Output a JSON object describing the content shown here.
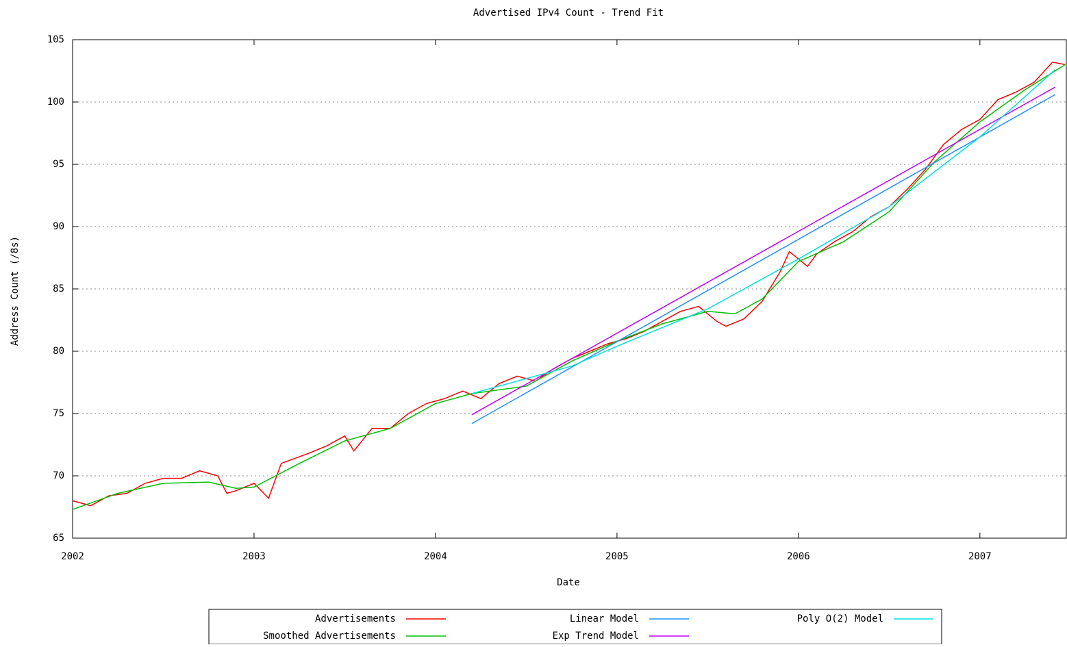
{
  "chart_data": {
    "type": "line",
    "title": "Advertised IPv4 Count - Trend Fit",
    "x_label": "Date",
    "y_label": "Address Count (/8s)",
    "xlim": [
      2002,
      2007.48
    ],
    "xticks": [
      2002,
      2003,
      2004,
      2005,
      2006,
      2007
    ],
    "ylim": [
      65,
      105
    ],
    "yticks": [
      65,
      70,
      75,
      80,
      85,
      90,
      95,
      100,
      105
    ],
    "grid": true,
    "legend": "bottom",
    "series": [
      {
        "name": "Advertisements",
        "color": "#ff0000",
        "x": [
          2002.0,
          2002.1,
          2002.2,
          2002.3,
          2002.4,
          2002.5,
          2002.6,
          2002.7,
          2002.8,
          2002.85,
          2002.9,
          2003.0,
          2003.08,
          2003.15,
          2003.3,
          2003.4,
          2003.5,
          2003.55,
          2003.65,
          2003.75,
          2003.85,
          2003.95,
          2004.05,
          2004.15,
          2004.25,
          2004.35,
          2004.45,
          2004.55,
          2004.65,
          2004.75,
          2004.85,
          2004.95,
          2005.05,
          2005.15,
          2005.25,
          2005.35,
          2005.45,
          2005.55,
          2005.6,
          2005.7,
          2005.8,
          2005.9,
          2005.95,
          2006.0,
          2006.05,
          2006.1,
          2006.2,
          2006.3,
          2006.4,
          2006.5,
          2006.6,
          2006.7,
          2006.8,
          2006.9,
          2007.0,
          2007.1,
          2007.2,
          2007.3,
          2007.4,
          2007.47
        ],
        "values": [
          68.0,
          67.6,
          68.4,
          68.6,
          69.4,
          69.8,
          69.8,
          70.4,
          70.0,
          68.6,
          68.8,
          69.4,
          68.2,
          71.0,
          71.8,
          72.4,
          73.2,
          72.0,
          73.8,
          73.8,
          75.0,
          75.8,
          76.2,
          76.8,
          76.2,
          77.4,
          78.0,
          77.6,
          78.6,
          79.4,
          80.0,
          80.6,
          81.0,
          81.6,
          82.4,
          83.2,
          83.6,
          82.4,
          82.0,
          82.6,
          84.0,
          86.4,
          88.0,
          87.4,
          86.8,
          87.8,
          88.8,
          89.6,
          90.8,
          91.6,
          93.0,
          94.6,
          96.6,
          97.8,
          98.6,
          100.2,
          100.8,
          101.6,
          103.2,
          103.0
        ]
      },
      {
        "name": "Smoothed Advertisements",
        "color": "#00c000",
        "x": [
          2002.0,
          2002.25,
          2002.5,
          2002.75,
          2002.9,
          2003.0,
          2003.25,
          2003.5,
          2003.75,
          2004.0,
          2004.2,
          2004.5,
          2004.75,
          2005.0,
          2005.25,
          2005.5,
          2005.65,
          2005.8,
          2006.0,
          2006.25,
          2006.5,
          2006.75,
          2007.0,
          2007.25,
          2007.47
        ],
        "values": [
          67.3,
          68.6,
          69.4,
          69.5,
          69.0,
          69.1,
          71.0,
          72.8,
          73.8,
          75.8,
          76.6,
          77.2,
          79.2,
          80.8,
          82.2,
          83.2,
          83.0,
          84.2,
          87.2,
          88.8,
          91.2,
          95.2,
          98.4,
          101.0,
          103.0
        ]
      },
      {
        "name": "Linear Model",
        "color": "#1e90ff",
        "x": [
          2004.2,
          2007.415
        ],
        "values": [
          74.2,
          100.6
        ]
      },
      {
        "name": "Exp Trend Model",
        "color": "#c000ff",
        "x": [
          2004.2,
          2007.415
        ],
        "values": [
          74.9,
          101.2
        ]
      },
      {
        "name": "Poly O(2) Model",
        "color": "#00e0e0",
        "x": [
          2004.2,
          2004.75,
          2005.0,
          2005.5,
          2006.0,
          2006.5,
          2007.0,
          2007.415
        ],
        "values": [
          76.6,
          78.8,
          80.4,
          83.4,
          87.4,
          91.6,
          97.2,
          102.6
        ]
      }
    ]
  }
}
